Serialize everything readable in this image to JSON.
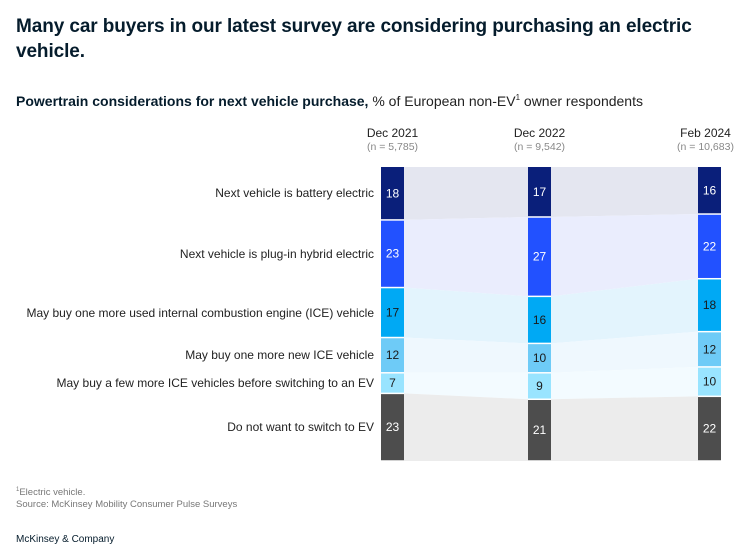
{
  "title": "Many car buyers in our latest survey are considering purchasing an electric vehicle.",
  "subtitle": {
    "bold": "Powertrain considerations for next vehicle purchase,",
    "regular": " % of European non-EV",
    "sup": "1",
    "tail": " owner respondents"
  },
  "footnote": {
    "sup": "1",
    "note": "Electric vehicle.",
    "source": "Source: McKinsey Mobility Consumer Pulse Surveys"
  },
  "brand": "McKinsey & Company",
  "chart_data": {
    "type": "bar",
    "subtype": "stacked-100-with-flow-bands",
    "title": "Powertrain considerations for next vehicle purchase, % of European non-EV owner respondents",
    "xlabel": "",
    "ylabel": "",
    "ylim": [
      0,
      100
    ],
    "categories": [
      "Dec 2021",
      "Dec 2022",
      "Feb 2024"
    ],
    "sample_sizes": [
      "(n = 5,785)",
      "(n = 9,542)",
      "(n = 10,683)"
    ],
    "series": [
      {
        "name": "Next vehicle is battery electric",
        "values": [
          18,
          17,
          16
        ],
        "color": "#0a1f7a",
        "band": "#e4e6f0",
        "text": "#ffffff"
      },
      {
        "name": "Next vehicle is plug-in hybrid electric",
        "values": [
          23,
          27,
          22
        ],
        "color": "#2251ff",
        "band": "#eaedfd",
        "text": "#ffffff"
      },
      {
        "name": "May buy one more used internal combustion engine (ICE) vehicle",
        "values": [
          17,
          16,
          18
        ],
        "color": "#00a9f4",
        "band": "#e3f4fd",
        "text": "#1a1a1a"
      },
      {
        "name": "May buy one more new ICE vehicle",
        "values": [
          12,
          10,
          12
        ],
        "color": "#6ecbf7",
        "band": "#eff8fe",
        "text": "#1a1a1a"
      },
      {
        "name": "May buy a few more ICE vehicles before switching to an EV",
        "values": [
          7,
          9,
          10
        ],
        "color": "#99e4ff",
        "band": "#f3fbff",
        "text": "#1a1a1a"
      },
      {
        "name": "Do not want to switch to EV",
        "values": [
          23,
          21,
          22
        ],
        "color": "#4d4d4d",
        "band": "#ececec",
        "text": "#ffffff"
      }
    ]
  }
}
